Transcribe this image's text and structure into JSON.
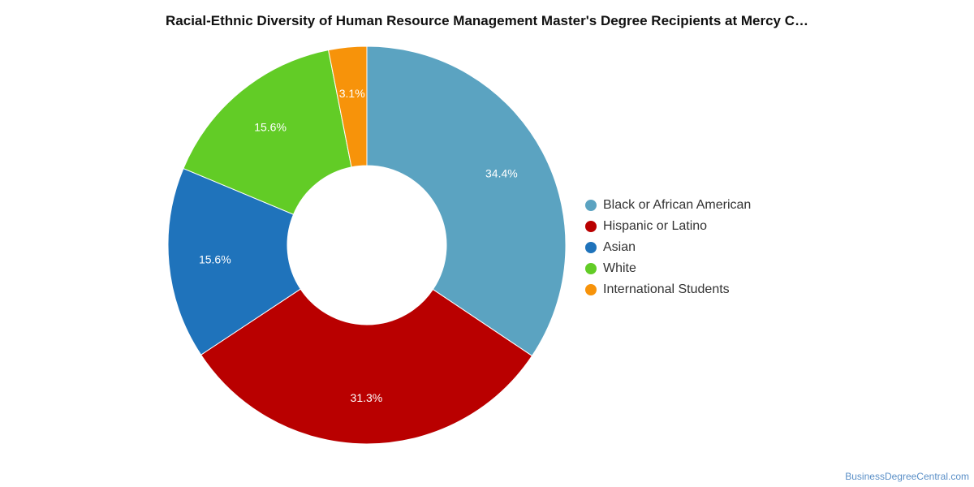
{
  "chart_data": {
    "type": "pie",
    "title": "Racial-Ethnic Diversity of Human Resource Management Master's Degree Recipients at Mercy C…",
    "donut": true,
    "legend_position": "right",
    "labels": [
      "Black or African American",
      "Hispanic or Latino",
      "Asian",
      "White",
      "International Students"
    ],
    "values": [
      34.4,
      31.3,
      15.6,
      15.6,
      3.1
    ],
    "value_labels": [
      "34.4%",
      "31.3%",
      "15.6%",
      "15.6%",
      "3.1%"
    ],
    "colors": [
      "#5ba3c1",
      "#b90000",
      "#1f73bb",
      "#62cc26",
      "#f7930a"
    ]
  },
  "watermark": "BusinessDegreeCentral.com"
}
